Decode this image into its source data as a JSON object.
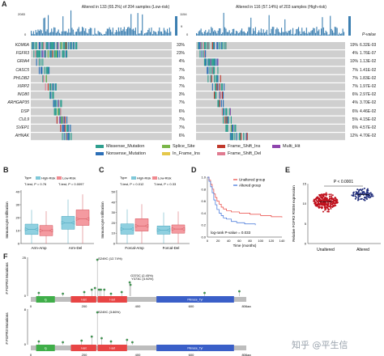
{
  "panelA": {
    "label": "A",
    "left_title": "Altered in 133 (65.2%) of 204 samples (Low-risk)",
    "right_title": "Altered in 116 (57.14%) of 203 samples (High-risk)",
    "left_ymax": "2083",
    "right_ymax": "1154",
    "left_ymin": "0",
    "right_ymin": "0",
    "side_ticks": "9",
    "pvalue_header": "P-value",
    "rows": [
      {
        "gene": "KDM6A",
        "left_pct": "33%",
        "right_pct": "19%",
        "p": "6.32E-03"
      },
      {
        "gene": "FGFR3",
        "left_pct": "23%",
        "right_pct": "4%",
        "p": "1.76E-07"
      },
      {
        "gene": "GRIA4",
        "left_pct": "4%",
        "right_pct": "10%",
        "p": "1.13E-02"
      },
      {
        "gene": "CASC5",
        "left_pct": "7%",
        "right_pct": "7%",
        "p": "1.41E-02"
      },
      {
        "gene": "PHLDB2",
        "left_pct": "3%",
        "right_pct": "7%",
        "p": "1.83E-02"
      },
      {
        "gene": "XIRP2",
        "left_pct": "7%",
        "right_pct": "7%",
        "p": "1.97E-02"
      },
      {
        "gene": "INO80",
        "left_pct": "3%",
        "right_pct": "6%",
        "p": "2.97E-02"
      },
      {
        "gene": "ARHGAP35",
        "left_pct": "7%",
        "right_pct": "4%",
        "p": "3.70E-02"
      },
      {
        "gene": "DSP",
        "left_pct": "6%",
        "right_pct": "6%",
        "p": "4.46E-02"
      },
      {
        "gene": "CUL9",
        "left_pct": "7%",
        "right_pct": "5%",
        "p": "4.15E-02"
      },
      {
        "gene": "SVEP1",
        "left_pct": "7%",
        "right_pct": "6%",
        "p": "4.57E-02"
      },
      {
        "gene": "AHNAK",
        "left_pct": "6%",
        "right_pct": "12%",
        "p": "4.70E-02"
      }
    ],
    "legend": [
      {
        "label": "Missense_Mutation",
        "color": "#2e9f8e"
      },
      {
        "label": "Splice_Site",
        "color": "#7ab648"
      },
      {
        "label": "Frame_Shift_Ins",
        "color": "#c0392b"
      },
      {
        "label": "Multi_Hit",
        "color": "#8e44ad"
      },
      {
        "label": "Nonsense_Mutation",
        "color": "#2c6fb7"
      },
      {
        "label": "In_Frame_Ins",
        "color": "#e5c84a"
      },
      {
        "label": "Frame_Shift_Del",
        "color": "#e07b91"
      }
    ]
  },
  "panelB": {
    "label": "B",
    "legend_title": "Type",
    "legend_high": "High-Risk",
    "legend_low": "Low-Risk",
    "test1": "T-test, P = 0.76",
    "test2": "T-test, P = 0.0097",
    "ylabel": "Immunocyte Infiltration",
    "categories": [
      "Arm-Amp",
      "Arm-Del"
    ],
    "yticks": [
      "0",
      "10",
      "20",
      "30",
      "40"
    ]
  },
  "panelC": {
    "label": "C",
    "legend_title": "Type",
    "legend_high": "High-Risk",
    "legend_low": "Low-Risk",
    "test1": "T-test, P = 0.012",
    "test2": "T-test, P = 0.33",
    "ylabel": "Immunocyte Infiltration",
    "categories": [
      "Forcal-Amp",
      "Forcal-Del"
    ],
    "yticks": [
      "0",
      "10",
      "20",
      "30",
      "40",
      "50"
    ]
  },
  "panelD": {
    "label": "D",
    "legend": [
      "Unaltered group",
      "Altered group"
    ],
    "pvalue": "log-rank P-value = 0.033",
    "xlabel": "Time (months)",
    "xticks": [
      "0",
      "20",
      "40",
      "60",
      "80",
      "100",
      "120",
      "140"
    ],
    "yticks": [
      "0.0",
      "0.2",
      "0.4",
      "0.6",
      "0.8",
      "1.0"
    ],
    "colors": {
      "unaltered": "#e8413b",
      "altered": "#3a6fd8"
    }
  },
  "panelE": {
    "label": "E",
    "pvalue": "P < 0.0001",
    "ylabel": "Relative FGFR3 RSEM expression",
    "categories": [
      "Unaltered",
      "Altered"
    ],
    "yticks": [
      "0",
      "5",
      "10",
      "15"
    ],
    "colors": {
      "unaltered": "#c0101c",
      "altered": "#1d2a7a"
    }
  },
  "panelF": {
    "label": "F",
    "top_ylabel": "# FGFR3 Mutations",
    "bottom_ylabel": "# FGFR3 Mutations",
    "top_ann1": "S249C (12.74%)",
    "top_ann2": "G370C (2.45%)",
    "top_ann3": "Y373C (3.92%)",
    "bottom_ann1": "S249C (3.86%)",
    "top_yticks": [
      "0",
      "25"
    ],
    "bottom_yticks": [
      "0",
      "8"
    ],
    "top_xticks": [
      "0",
      "200",
      "400",
      "600",
      "806aa"
    ],
    "bottom_xticks": [
      "0",
      "200",
      "400",
      "600",
      "806aa"
    ],
    "domains": [
      {
        "name": "Ig",
        "color": "#3fae49"
      },
      {
        "name": "I-set",
        "color": "#e84545"
      },
      {
        "name": "I-set",
        "color": "#e84545"
      },
      {
        "name": "Pkinase_Tyr",
        "color": "#3a5fc8"
      }
    ]
  },
  "watermark": "知乎 @平生信"
}
